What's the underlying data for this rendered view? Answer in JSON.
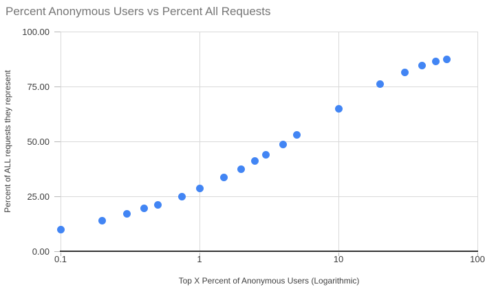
{
  "chart_data": {
    "type": "scatter",
    "title": "Percent Anonymous Users vs Percent All Requests",
    "xlabel": "Top X Percent of Anonymous Users (Logarithmic)",
    "ylabel": "Percent of ALL requests they represent",
    "x_scale": "log",
    "xlim": [
      0.1,
      100
    ],
    "ylim": [
      0,
      100
    ],
    "grid": true,
    "legend_position": "none",
    "x_ticks": [
      {
        "value": 0.1,
        "label": "0.1"
      },
      {
        "value": 1,
        "label": "1"
      },
      {
        "value": 10,
        "label": "10"
      },
      {
        "value": 100,
        "label": "100"
      }
    ],
    "y_ticks": [
      {
        "value": 0,
        "label": "0.00"
      },
      {
        "value": 25,
        "label": "25.00"
      },
      {
        "value": 50,
        "label": "50.00"
      },
      {
        "value": 75,
        "label": "75.00"
      },
      {
        "value": 100,
        "label": "100.00"
      }
    ],
    "points": [
      {
        "x": 0.1,
        "y": 10
      },
      {
        "x": 0.2,
        "y": 14
      },
      {
        "x": 0.3,
        "y": 17
      },
      {
        "x": 0.4,
        "y": 19.5
      },
      {
        "x": 0.5,
        "y": 21
      },
      {
        "x": 0.75,
        "y": 25
      },
      {
        "x": 1,
        "y": 28.5
      },
      {
        "x": 1.5,
        "y": 33.5
      },
      {
        "x": 2,
        "y": 37.5
      },
      {
        "x": 2.5,
        "y": 41
      },
      {
        "x": 3,
        "y": 44
      },
      {
        "x": 4,
        "y": 48.5
      },
      {
        "x": 5,
        "y": 53
      },
      {
        "x": 10,
        "y": 65
      },
      {
        "x": 20,
        "y": 76
      },
      {
        "x": 30,
        "y": 81.5
      },
      {
        "x": 40,
        "y": 84.5
      },
      {
        "x": 50,
        "y": 86.5
      },
      {
        "x": 60,
        "y": 87.5
      }
    ]
  },
  "colors": {
    "point": "#4285f4",
    "gridline": "#d9d9d9",
    "tick": "#b7b7b7",
    "axis_line": "#333333",
    "title": "#757575",
    "tick_label": "#3c3c3c",
    "axis_title": "#404040"
  }
}
